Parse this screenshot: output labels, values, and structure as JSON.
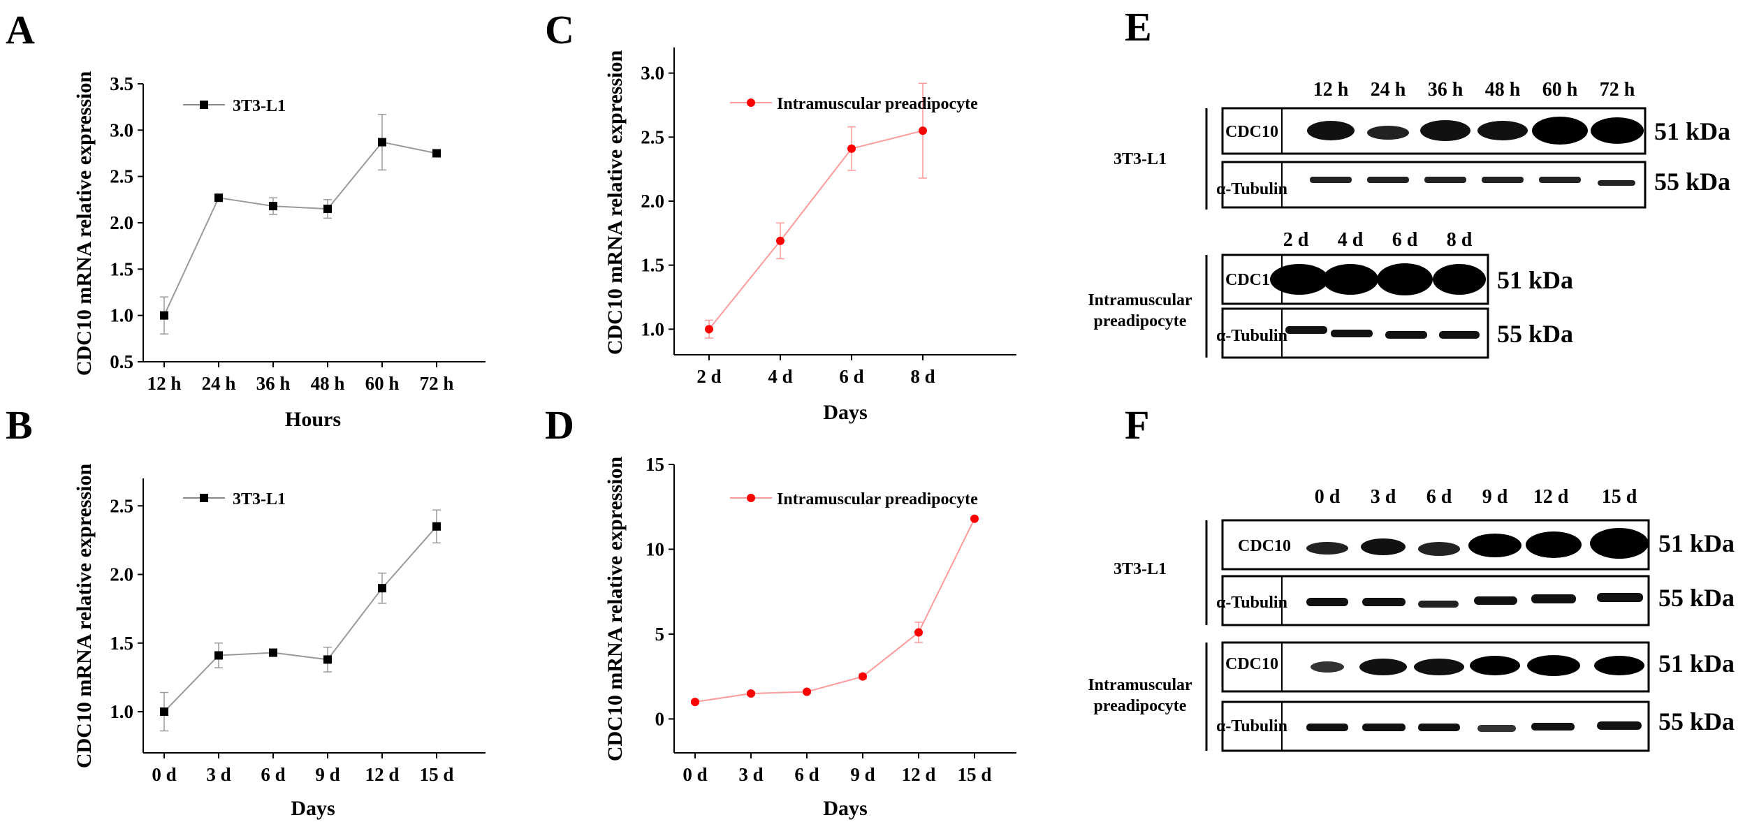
{
  "chart_data": [
    {
      "panel": "A",
      "type": "line",
      "color": "#000000",
      "categories": [
        "12 h",
        "24 h",
        "36 h",
        "48 h",
        "60 h",
        "72 h"
      ],
      "values": [
        1.0,
        2.27,
        2.18,
        2.15,
        2.87,
        2.75
      ],
      "errors": [
        0.2,
        0.02,
        0.09,
        0.1,
        0.3,
        0.02
      ],
      "ylim": [
        0.5,
        3.5
      ],
      "yticks": [
        "0.5",
        "1.0",
        "1.5",
        "2.0",
        "2.5",
        "3.0",
        "3.5"
      ],
      "xlabel": "Hours",
      "ylabel": "CDC10 mRNA relative expression",
      "legend": "3T3-L1",
      "marker": "square"
    },
    {
      "panel": "B",
      "type": "line",
      "color": "#000000",
      "categories": [
        "0 d",
        "3 d",
        "6 d",
        "9 d",
        "12 d",
        "15 d"
      ],
      "values": [
        1.0,
        1.41,
        1.43,
        1.38,
        1.9,
        2.35
      ],
      "errors": [
        0.14,
        0.09,
        0.02,
        0.09,
        0.11,
        0.12
      ],
      "ylim": [
        0.7,
        2.7
      ],
      "yticks": [
        "1.0",
        "1.5",
        "2.0",
        "2.5"
      ],
      "xlabel": "Days",
      "ylabel": "CDC10 mRNA relative expression",
      "legend": "3T3-L1",
      "marker": "square"
    },
    {
      "panel": "C",
      "type": "line",
      "color": "#ff0000",
      "categories": [
        "2 d",
        "4 d",
        "6 d",
        "8 d"
      ],
      "values": [
        1.0,
        1.69,
        2.41,
        2.55
      ],
      "errors": [
        0.07,
        0.14,
        0.17,
        0.37
      ],
      "ylim": [
        0.8,
        3.2
      ],
      "yticks": [
        "1.0",
        "1.5",
        "2.0",
        "2.5",
        "3.0"
      ],
      "xlabel": "Days",
      "ylabel": "CDC10 mRNA relative expression",
      "legend": "Intramuscular preadipocyte",
      "marker": "circle"
    },
    {
      "panel": "D",
      "type": "line",
      "color": "#ff0000",
      "categories": [
        "0 d",
        "3 d",
        "6 d",
        "9 d",
        "12 d",
        "15 d"
      ],
      "values": [
        1.0,
        1.5,
        1.6,
        2.5,
        5.1,
        11.8
      ],
      "errors": [
        0.1,
        0.1,
        0.1,
        0.15,
        0.6,
        0
      ],
      "ylim": [
        -2,
        15
      ],
      "yticks": [
        "0",
        "5",
        "10",
        "15"
      ],
      "xlabel": "Days",
      "ylabel": "CDC10 mRNA relative expression",
      "legend": "Intramuscular preadipocyte",
      "marker": "circle"
    }
  ],
  "blots": {
    "E": {
      "letter": "E",
      "group1": {
        "cell": "3T3-L1",
        "lanes": [
          "12 h",
          "24 h",
          "36 h",
          "48 h",
          "60 h",
          "72 h"
        ]
      },
      "group2": {
        "cell_line1": "Intramuscular",
        "cell_line2": "preadipocyte",
        "lanes": [
          "2 d",
          "4 d",
          "6 d",
          "8 d"
        ]
      }
    },
    "F": {
      "letter": "F",
      "lanes": [
        "0 d",
        "3 d",
        "6 d",
        "9 d",
        "12 d",
        "15 d"
      ],
      "group1": {
        "cell": "3T3-L1"
      },
      "group2": {
        "cell_line1": "Intramuscular",
        "cell_line2": "preadipocyte"
      }
    },
    "protein": "CDC10",
    "control": "α-Tubulin",
    "protein_kda": "51 kDa",
    "control_kda": "55 kDa"
  }
}
